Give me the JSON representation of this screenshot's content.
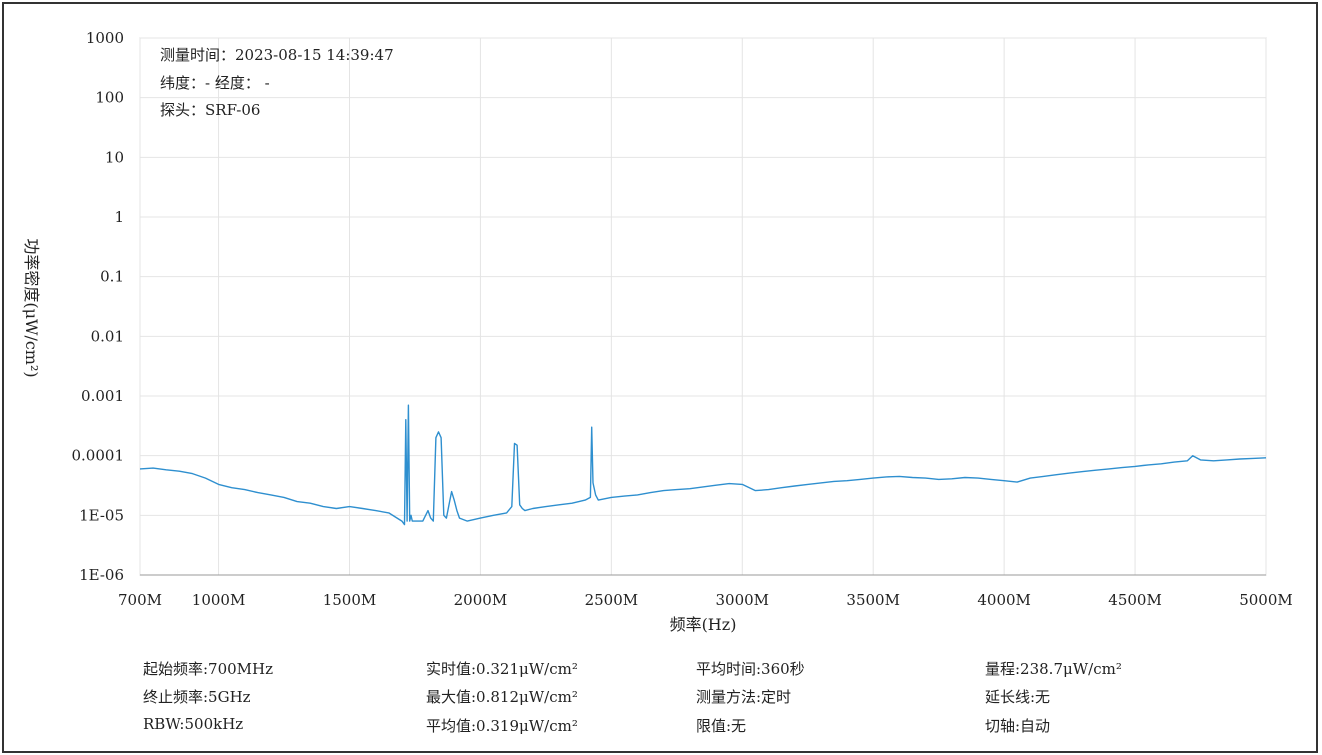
{
  "chart_data": {
    "type": "line",
    "xlabel": "频率(Hz)",
    "ylabel": "功率密度(μW/cm²)",
    "yscale": "log",
    "xlim": [
      700,
      5000
    ],
    "ylim": [
      1e-06,
      1000
    ],
    "x_ticks": [
      {
        "value": 700,
        "label": "700M"
      },
      {
        "value": 1000,
        "label": "1000M"
      },
      {
        "value": 1500,
        "label": "1500M"
      },
      {
        "value": 2000,
        "label": "2000M"
      },
      {
        "value": 2500,
        "label": "2500M"
      },
      {
        "value": 3000,
        "label": "3000M"
      },
      {
        "value": 3500,
        "label": "3500M"
      },
      {
        "value": 4000,
        "label": "4000M"
      },
      {
        "value": 4500,
        "label": "4500M"
      },
      {
        "value": 5000,
        "label": "5000M"
      }
    ],
    "y_ticks": [
      {
        "value": 1000,
        "label": "1000"
      },
      {
        "value": 100,
        "label": "100"
      },
      {
        "value": 10,
        "label": "10"
      },
      {
        "value": 1,
        "label": "1"
      },
      {
        "value": 0.1,
        "label": "0.1"
      },
      {
        "value": 0.01,
        "label": "0.01"
      },
      {
        "value": 0.001,
        "label": "0.001"
      },
      {
        "value": 0.0001,
        "label": "0.0001"
      },
      {
        "value": 1e-05,
        "label": "1E-05"
      },
      {
        "value": 1e-06,
        "label": "1E-06"
      }
    ],
    "grid": true,
    "line_color": "#2e8fcf",
    "series": [
      {
        "x": [
          700,
          750,
          800,
          850,
          900,
          950,
          1000,
          1050,
          1100,
          1150,
          1200,
          1250,
          1300,
          1350,
          1400,
          1450,
          1500,
          1550,
          1600,
          1650,
          1700,
          1710,
          1715,
          1720,
          1725,
          1730,
          1735,
          1740,
          1750,
          1780,
          1800,
          1810,
          1820,
          1830,
          1840,
          1850,
          1860,
          1870,
          1880,
          1890,
          1900,
          1910,
          1920,
          1950,
          2000,
          2050,
          2100,
          2120,
          2130,
          2140,
          2150,
          2160,
          2170,
          2200,
          2250,
          2300,
          2350,
          2400,
          2420,
          2425,
          2430,
          2440,
          2450,
          2500,
          2550,
          2600,
          2650,
          2700,
          2750,
          2800,
          2850,
          2900,
          2950,
          3000,
          3050,
          3100,
          3150,
          3200,
          3250,
          3300,
          3350,
          3400,
          3450,
          3500,
          3550,
          3600,
          3650,
          3700,
          3750,
          3800,
          3850,
          3900,
          3950,
          4000,
          4050,
          4100,
          4150,
          4200,
          4250,
          4300,
          4350,
          4400,
          4450,
          4500,
          4550,
          4600,
          4650,
          4700,
          4720,
          4750,
          4800,
          4850,
          4900,
          4950,
          5000
        ],
        "y": [
          6e-05,
          6.2e-05,
          5.8e-05,
          5.5e-05,
          5e-05,
          4.2e-05,
          3.3e-05,
          2.9e-05,
          2.7e-05,
          2.4e-05,
          2.2e-05,
          2e-05,
          1.7e-05,
          1.6e-05,
          1.4e-05,
          1.3e-05,
          1.4e-05,
          1.3e-05,
          1.2e-05,
          1.1e-05,
          8e-06,
          7e-06,
          0.0004,
          8e-06,
          0.0007,
          8e-06,
          1e-05,
          8e-06,
          8e-06,
          8e-06,
          1.2e-05,
          9e-06,
          8e-06,
          0.0002,
          0.00025,
          0.0002,
          1e-05,
          9e-06,
          1.5e-05,
          2.5e-05,
          1.8e-05,
          1.2e-05,
          9e-06,
          8e-06,
          9e-06,
          1e-05,
          1.1e-05,
          1.4e-05,
          0.00016,
          0.00015,
          1.5e-05,
          1.3e-05,
          1.2e-05,
          1.3e-05,
          1.4e-05,
          1.5e-05,
          1.6e-05,
          1.8e-05,
          2e-05,
          0.0003,
          3.5e-05,
          2.2e-05,
          1.8e-05,
          2e-05,
          2.1e-05,
          2.2e-05,
          2.4e-05,
          2.6e-05,
          2.7e-05,
          2.8e-05,
          3e-05,
          3.2e-05,
          3.4e-05,
          3.3e-05,
          2.6e-05,
          2.7e-05,
          2.9e-05,
          3.1e-05,
          3.3e-05,
          3.5e-05,
          3.7e-05,
          3.8e-05,
          4e-05,
          4.2e-05,
          4.4e-05,
          4.5e-05,
          4.3e-05,
          4.2e-05,
          4e-05,
          4.1e-05,
          4.3e-05,
          4.2e-05,
          4e-05,
          3.8e-05,
          3.6e-05,
          4.2e-05,
          4.5e-05,
          4.8e-05,
          5.1e-05,
          5.4e-05,
          5.7e-05,
          6e-05,
          6.3e-05,
          6.6e-05,
          7e-05,
          7.3e-05,
          7.8e-05,
          8.2e-05,
          0.0001,
          8.5e-05,
          8.2e-05,
          8.5e-05,
          8.8e-05,
          9e-05,
          9.2e-05
        ]
      }
    ]
  },
  "annotation": {
    "time_line": "测量时间：2023-08-15 14:39:47",
    "geo_line": "纬度：- 经度：  -",
    "probe_line": "探头：SRF-06"
  },
  "info": {
    "start_freq": "起始频率:700MHz",
    "stop_freq": "终止频率:5GHz",
    "rbw": "RBW:500kHz",
    "realtime": "实时值:0.321μW/cm²",
    "max": "最大值:0.812μW/cm²",
    "avg": "平均值:0.319μW/cm²",
    "avg_time": "平均时间:360秒",
    "method": "测量方法:定时",
    "limit": "限值:无",
    "range": "量程:238.7μW/cm²",
    "ext_line": "延长线:无",
    "axis_switch": "切轴:自动"
  }
}
